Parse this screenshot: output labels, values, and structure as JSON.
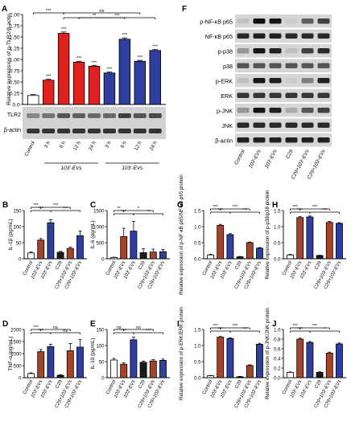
{
  "colors": {
    "white": "#ffffff",
    "orange": "#d9541a",
    "red": "#e0201e",
    "brown": "#a4452b",
    "blue": "#2e3f9e",
    "green": "#2a8c3f",
    "black": "#1a1a1a",
    "sig_dot": "#e0207c"
  },
  "labels": {
    "controls_labels": [
      "Control",
      "103'-EVs",
      "103'-EVs",
      "C29",
      "C29+103'-EVs",
      "C29+103'-EVs"
    ],
    "sig": "***"
  },
  "chart_data": [
    {
      "panel": "A",
      "type": "bar",
      "title": "",
      "ylabel": "Relative expression of p-TLR2/β-actin",
      "ylim": [
        0,
        2.0
      ],
      "yticks": [
        "0.0",
        "0.25",
        "0.50",
        "0.75",
        "1.00",
        "1.25",
        "1.50",
        "1.75",
        "2.00"
      ],
      "categories": [
        "Control",
        "3 h",
        "6 h",
        "12 h",
        "24 h",
        "3 h",
        "6 h",
        "12 h",
        "24 h"
      ],
      "group_labels": [
        "103'-EVs",
        "103'-EVs"
      ],
      "values": [
        0.2,
        0.54,
        1.58,
        0.94,
        0.85,
        0.7,
        1.45,
        0.96,
        1.2
      ],
      "errors": [
        0.02,
        0.02,
        0.03,
        0.02,
        0.02,
        0.02,
        0.03,
        0.02,
        0.02
      ],
      "colors": [
        "white",
        "red",
        "red",
        "red",
        "red",
        "blue",
        "blue",
        "blue",
        "blue"
      ],
      "bar_sig": [
        "",
        "***",
        "***",
        "***",
        "***",
        "***",
        "***",
        "***",
        "***"
      ],
      "brackets": [
        {
          "from": 0,
          "to": 2,
          "text": "***"
        },
        {
          "from": 2,
          "to": 6,
          "text": "**"
        },
        {
          "from": 2,
          "to": 7,
          "text": "ns"
        },
        {
          "from": 3,
          "to": 8,
          "text": "***"
        }
      ],
      "blot_bands": [
        "TLR2",
        "β-actin"
      ]
    },
    {
      "panel": "F",
      "type": "table",
      "lanes": [
        "Control",
        "103'-EVs",
        "103'-EVs",
        "C29",
        "C29+103'-EVs",
        "C29+103'-EVs"
      ],
      "bands": [
        "p-NF-κB p65",
        "NF-κB p65",
        "p-p38",
        "p38",
        "p-ERK",
        "ERK",
        "p-JNK",
        "JNK",
        "β-actin"
      ]
    },
    {
      "panel": "B",
      "type": "bar",
      "title": "",
      "ylabel": "IL-1β (pg/mL)",
      "ylim": [
        0,
        150
      ],
      "yticks": [
        "0",
        "50",
        "100",
        "150"
      ],
      "categories": [
        "Control",
        "103'-EVs",
        "103'-EVs",
        "C29",
        "C29+103'-EVs",
        "C29+103'-EVs"
      ],
      "values": [
        18,
        58,
        112,
        20,
        32,
        72
      ],
      "errors": [
        3,
        5,
        9,
        3,
        4,
        14
      ],
      "colors": [
        "white",
        "brown",
        "blue",
        "black",
        "brown",
        "blue"
      ],
      "brackets": [
        {
          "from": 0,
          "to": 1,
          "text": "***",
          "level": 0
        },
        {
          "from": 0,
          "to": 2,
          "text": "***",
          "level": 1
        },
        {
          "from": 1,
          "to": 4,
          "text": "***",
          "level": 2
        },
        {
          "from": 2,
          "to": 5,
          "text": "***",
          "level": 3
        }
      ]
    },
    {
      "panel": "C",
      "type": "bar",
      "title": "",
      "ylabel": "IL-6 (pg/mL)",
      "ylim": [
        0,
        1500
      ],
      "yticks": [
        "0",
        "500",
        "1000",
        "1500"
      ],
      "categories": [
        "Control",
        "103'-EVs",
        "103'-EVs",
        "C29",
        "C29+103'-EVs",
        "C29+103'-EVs"
      ],
      "values": [
        40,
        690,
        860,
        190,
        210,
        220
      ],
      "errors": [
        10,
        260,
        300,
        120,
        90,
        70
      ],
      "colors": [
        "white",
        "brown",
        "blue",
        "black",
        "brown",
        "blue"
      ],
      "brackets": [
        {
          "from": 0,
          "to": 1,
          "text": "**",
          "level": 0
        },
        {
          "from": 0,
          "to": 2,
          "text": "***",
          "level": 1
        },
        {
          "from": 1,
          "to": 4,
          "text": "*",
          "level": 2
        },
        {
          "from": 2,
          "to": 5,
          "text": "**",
          "level": 3
        }
      ]
    },
    {
      "panel": "G",
      "type": "bar",
      "title": "",
      "ylabel": "Relative expression of p-NF-κB p65/NF-κB p65 protein",
      "ylim": [
        0,
        1.5
      ],
      "yticks": [
        "0.0",
        "0.5",
        "1.0",
        "1.5"
      ],
      "categories": [
        "Control",
        "103'-EVs",
        "103'-EVs",
        "C29",
        "C29+103'-EVs",
        "C29+103'-EVs"
      ],
      "values": [
        0.12,
        1.04,
        0.75,
        0.06,
        0.5,
        0.33
      ],
      "errors": [
        0.02,
        0.03,
        0.03,
        0.01,
        0.02,
        0.02
      ],
      "colors": [
        "white",
        "brown",
        "blue",
        "black",
        "brown",
        "blue"
      ],
      "brackets": [
        {
          "from": 0,
          "to": 1,
          "text": "***",
          "level": 0
        },
        {
          "from": 0,
          "to": 2,
          "text": "***",
          "level": 1
        },
        {
          "from": 1,
          "to": 4,
          "text": "***",
          "level": 2
        },
        {
          "from": 2,
          "to": 5,
          "text": "***",
          "level": 3
        }
      ]
    },
    {
      "panel": "H",
      "type": "bar",
      "title": "",
      "ylabel": "Relative expression of p-p38/p38 protein",
      "ylim": [
        0,
        1.5
      ],
      "yticks": [
        "0.0",
        "0.5",
        "1.0",
        "1.5"
      ],
      "categories": [
        "Control",
        "103'-EVs",
        "103'-EVs",
        "C29",
        "C29+103'-EVs",
        "C29+103'-EVs"
      ],
      "values": [
        0.12,
        1.28,
        1.3,
        0.1,
        1.13,
        1.1
      ],
      "errors": [
        0.02,
        0.03,
        0.03,
        0.01,
        0.03,
        0.02
      ],
      "colors": [
        "white",
        "brown",
        "blue",
        "black",
        "brown",
        "blue"
      ],
      "brackets": [
        {
          "from": 0,
          "to": 1,
          "text": "***",
          "level": 0
        },
        {
          "from": 0,
          "to": 2,
          "text": "***",
          "level": 1
        },
        {
          "from": 1,
          "to": 4,
          "text": "***",
          "level": 2
        },
        {
          "from": 2,
          "to": 5,
          "text": "***",
          "level": 3
        }
      ]
    },
    {
      "panel": "D",
      "type": "bar",
      "title": "",
      "ylabel": "TNF-α (pg/mL)",
      "ylim": [
        0,
        2000
      ],
      "yticks": [
        "0",
        "500",
        "1000",
        "1500",
        "2000"
      ],
      "categories": [
        "Control",
        "103'-EVs",
        "103'-EVs",
        "C29",
        "C29+103'-EVs",
        "C29+103'-EVs"
      ],
      "values": [
        170,
        1080,
        1290,
        100,
        1120,
        1270
      ],
      "errors": [
        30,
        90,
        100,
        20,
        300,
        320
      ],
      "colors": [
        "white",
        "brown",
        "blue",
        "black",
        "brown",
        "blue"
      ],
      "brackets": [
        {
          "from": 0,
          "to": 1,
          "text": "***",
          "level": 0
        },
        {
          "from": 0,
          "to": 2,
          "text": "***",
          "level": 1
        },
        {
          "from": 1,
          "to": 4,
          "text": "ns",
          "level": 2
        },
        {
          "from": 2,
          "to": 5,
          "text": "ns",
          "level": 3
        }
      ]
    },
    {
      "panel": "E",
      "type": "bar",
      "title": "",
      "ylabel": "IL-10 (pg/mL)",
      "ylim": [
        0,
        150
      ],
      "yticks": [
        "0",
        "50",
        "100",
        "150"
      ],
      "categories": [
        "Control",
        "103'-EVs",
        "103'-EVs",
        "C29",
        "C29+103'-EVs",
        "C29+103'-EVs"
      ],
      "values": [
        55,
        42,
        118,
        48,
        52,
        54
      ],
      "errors": [
        5,
        4,
        8,
        4,
        4,
        4
      ],
      "colors": [
        "white",
        "brown",
        "blue",
        "black",
        "brown",
        "blue"
      ],
      "brackets": [
        {
          "from": 0,
          "to": 1,
          "text": "ns",
          "level": 0
        },
        {
          "from": 0,
          "to": 2,
          "text": "***",
          "level": 1
        },
        {
          "from": 1,
          "to": 4,
          "text": "ns",
          "level": 2
        },
        {
          "from": 2,
          "to": 5,
          "text": "***",
          "level": 3
        }
      ]
    },
    {
      "panel": "I",
      "type": "bar",
      "title": "",
      "ylabel": "Relative expression of p-ERK/ERK protein",
      "ylim": [
        0,
        1.5
      ],
      "yticks": [
        "0.0",
        "0.5",
        "1.0",
        "1.5"
      ],
      "categories": [
        "Control",
        "103'-EVs",
        "103'-EVs",
        "C29",
        "C29+103'-EVs",
        "C29+103'-EVs"
      ],
      "values": [
        0.06,
        1.26,
        1.22,
        0.03,
        0.38,
        1.04
      ],
      "errors": [
        0.01,
        0.02,
        0.02,
        0.01,
        0.02,
        0.03
      ],
      "colors": [
        "white",
        "brown",
        "blue",
        "black",
        "brown",
        "blue"
      ],
      "brackets": [
        {
          "from": 0,
          "to": 1,
          "text": "***",
          "level": 0
        },
        {
          "from": 0,
          "to": 2,
          "text": "***",
          "level": 1
        },
        {
          "from": 1,
          "to": 4,
          "text": "***",
          "level": 2
        },
        {
          "from": 2,
          "to": 5,
          "text": "***",
          "level": 3
        }
      ]
    },
    {
      "panel": "J",
      "type": "bar",
      "title": "",
      "ylabel": "Relative expression of p-JNK/JNK protein",
      "ylim": [
        0,
        1.0
      ],
      "yticks": [
        "0.0",
        "0.2",
        "0.4",
        "0.6",
        "0.8",
        "1.0"
      ],
      "categories": [
        "Control",
        "103'-EVs",
        "103'-EVs",
        "C29",
        "C29+103'-EVs",
        "C29+103'-EVs"
      ],
      "values": [
        0.11,
        0.8,
        0.73,
        0.11,
        0.51,
        0.7
      ],
      "errors": [
        0.01,
        0.02,
        0.02,
        0.01,
        0.02,
        0.02
      ],
      "colors": [
        "white",
        "brown",
        "blue",
        "black",
        "brown",
        "blue"
      ],
      "brackets": [
        {
          "from": 0,
          "to": 1,
          "text": "***",
          "level": 0
        },
        {
          "from": 0,
          "to": 2,
          "text": "***",
          "level": 1
        },
        {
          "from": 1,
          "to": 4,
          "text": "***",
          "level": 2
        },
        {
          "from": 2,
          "to": 5,
          "text": "*",
          "level": 3
        }
      ]
    }
  ]
}
